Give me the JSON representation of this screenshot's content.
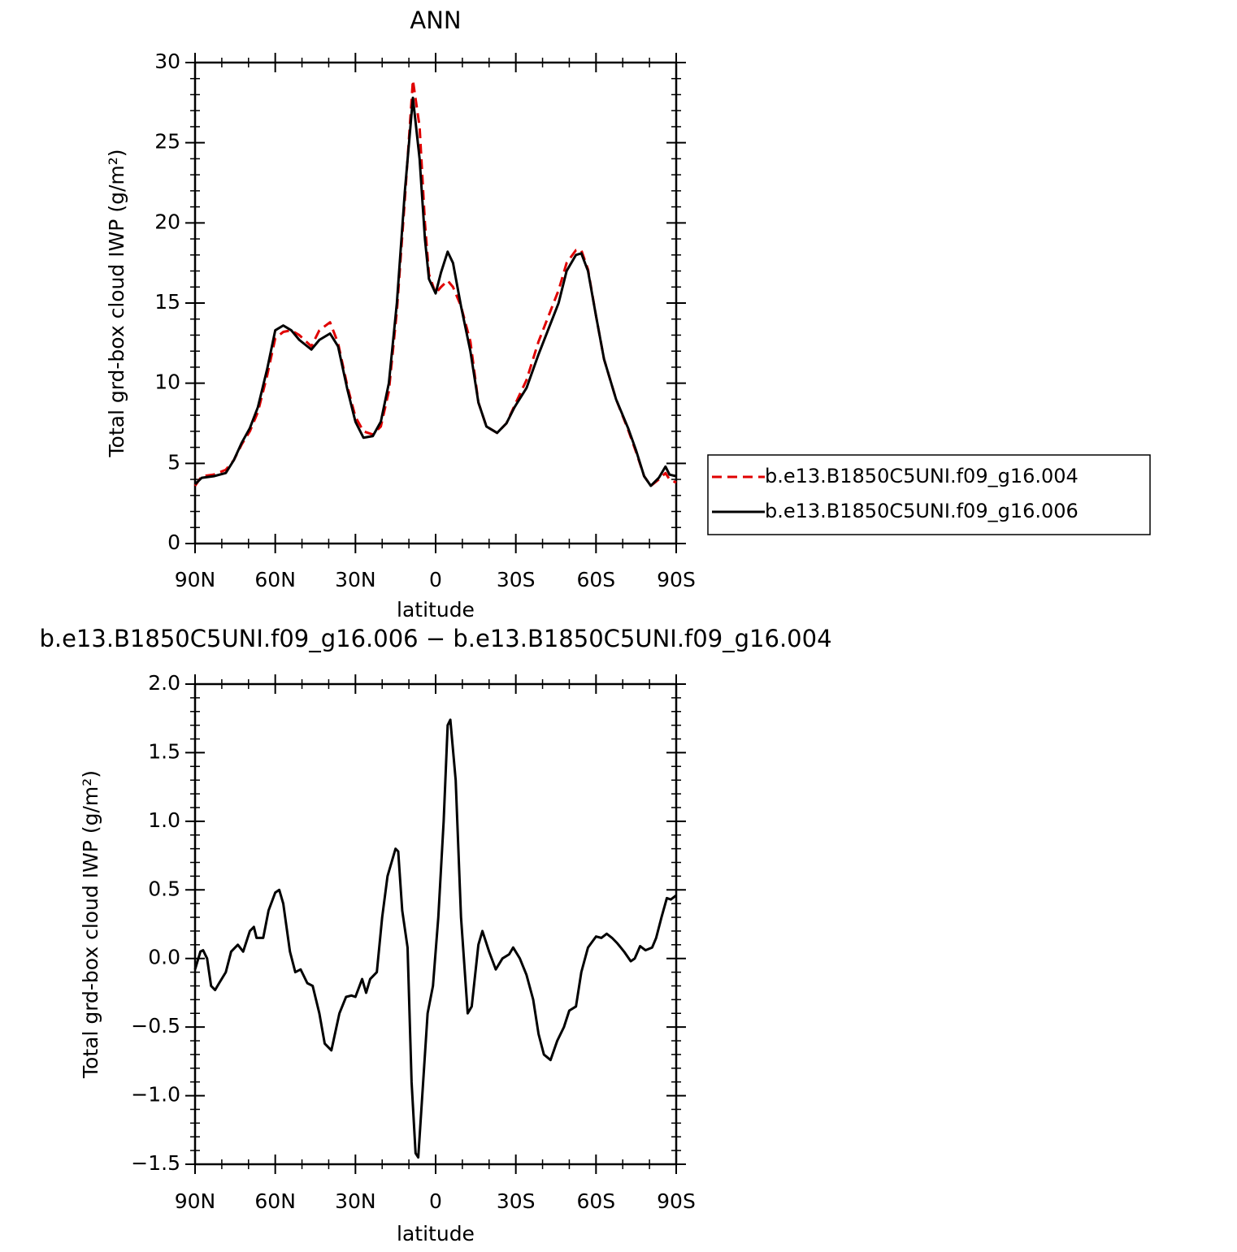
{
  "chart_data": [
    {
      "type": "line",
      "title": "ANN",
      "xlabel": "latitude",
      "ylabel": "Total grd-box cloud IWP (g/m²)",
      "xlim": [
        90,
        -90
      ],
      "ylim": [
        0,
        30
      ],
      "xticks": [
        {
          "value": 90,
          "label": "90N"
        },
        {
          "value": 60,
          "label": "60N"
        },
        {
          "value": 30,
          "label": "30N"
        },
        0,
        {
          "value": -30,
          "label": "30S"
        },
        {
          "value": -60,
          "label": "60S"
        },
        {
          "value": -90,
          "label": "90S"
        }
      ],
      "yticks": [
        0,
        5,
        10,
        15,
        20,
        25,
        30
      ],
      "xminorticks": [
        80,
        70,
        50,
        40,
        20,
        10,
        -10,
        -20,
        -40,
        -50,
        -70,
        -80
      ],
      "yminorticks": [
        1,
        2,
        3,
        4,
        6,
        7,
        8,
        9,
        11,
        12,
        13,
        14,
        16,
        17,
        18,
        19,
        21,
        22,
        23,
        24,
        26,
        27,
        28,
        29
      ],
      "legend": "right",
      "x": [
        90,
        87.5,
        83,
        78.5,
        75.5,
        72.5,
        69.5,
        66.5,
        63,
        60,
        57,
        54,
        51,
        46.5,
        43.5,
        39.5,
        36.5,
        33,
        30,
        27,
        23.5,
        20.5,
        17.5,
        14.5,
        11.5,
        8.5,
        6,
        4,
        2.5,
        0,
        -2,
        -4.5,
        -6.5,
        -9.5,
        -13,
        -16,
        -19,
        -23,
        -26.5,
        -29.5,
        -34,
        -38.5,
        -46,
        -49,
        -52.5,
        -54.5,
        -57,
        -60,
        -63,
        -67.5,
        -72,
        -75,
        -78,
        -80.5,
        -83.5,
        -86,
        -87.5,
        -90
      ],
      "series": [
        {
          "name": "b.e13.B1850C5UNI.f09_g16.004",
          "color": "#e00000",
          "dash": true,
          "values": [
            3.6,
            4.2,
            4.3,
            4.6,
            5.2,
            6.2,
            7.0,
            8.2,
            10.5,
            12.8,
            13.2,
            13.3,
            13.0,
            12.3,
            13.3,
            13.8,
            12.5,
            9.8,
            7.9,
            7.0,
            6.8,
            7.3,
            9.5,
            14.5,
            21.5,
            28.9,
            26,
            20,
            16.8,
            15.6,
            16.0,
            16.4,
            16.0,
            14.8,
            12.6,
            8.8,
            7.3,
            6.9,
            7.5,
            8.6,
            10.2,
            12.6,
            15.8,
            17.5,
            18.3,
            18.3,
            17.1,
            14.2,
            11.5,
            9.0,
            7.1,
            5.7,
            4.2,
            3.6,
            4.0,
            4.4,
            4.0,
            3.8
          ]
        },
        {
          "name": "b.e13.B1850C5UNI.f09_g16.006",
          "color": "#000000",
          "dash": false,
          "values": [
            3.7,
            4.1,
            4.2,
            4.4,
            5.2,
            6.3,
            7.2,
            8.5,
            10.9,
            13.3,
            13.6,
            13.3,
            12.7,
            12.1,
            12.7,
            13.1,
            12.3,
            9.6,
            7.6,
            6.6,
            6.7,
            7.6,
            10.0,
            15.0,
            22.0,
            27.8,
            24,
            19,
            16.5,
            15.6,
            16.9,
            18.2,
            17.5,
            14.8,
            12.0,
            8.8,
            7.3,
            6.9,
            7.5,
            8.5,
            9.7,
            11.8,
            15,
            17,
            18,
            18.1,
            17,
            14.2,
            11.5,
            9.0,
            7.2,
            5.8,
            4.2,
            3.6,
            4.1,
            4.8,
            4.3,
            4.2
          ]
        }
      ]
    },
    {
      "type": "line",
      "title": "b.e13.B1850C5UNI.f09_g16.006 − b.e13.B1850C5UNI.f09_g16.004",
      "xlabel": "latitude",
      "ylabel": "Total grd-box cloud IWP (g/m²)",
      "xlim": [
        90,
        -90
      ],
      "ylim": [
        -1.5,
        2.0
      ],
      "xticks": [
        {
          "value": 90,
          "label": "90N"
        },
        {
          "value": 60,
          "label": "60N"
        },
        {
          "value": 30,
          "label": "30N"
        },
        0,
        {
          "value": -30,
          "label": "30S"
        },
        {
          "value": -60,
          "label": "60S"
        },
        {
          "value": -90,
          "label": "90S"
        }
      ],
      "yticks": [
        {
          "value": -1.5,
          "label": "−1.5"
        },
        {
          "value": -1.0,
          "label": "−1.0"
        },
        {
          "value": -0.5,
          "label": "−0.5"
        },
        {
          "value": 0,
          "label": "0.0"
        },
        0.5,
        {
          "value": 1,
          "label": "1.0"
        },
        1.5,
        {
          "value": 2,
          "label": "2.0"
        }
      ],
      "xminorticks": [
        80,
        70,
        50,
        40,
        20,
        10,
        -10,
        -20,
        -40,
        -50,
        -70,
        -80
      ],
      "yminorticks": [
        -1.4,
        -1.3,
        -1.2,
        -1.1,
        -0.9,
        -0.8,
        -0.7,
        -0.6,
        -0.4,
        -0.3,
        -0.2,
        -0.1,
        0.1,
        0.2,
        0.3,
        0.4,
        0.6,
        0.7,
        0.8,
        0.9,
        1.1,
        1.2,
        1.3,
        1.4,
        1.6,
        1.7,
        1.8,
        1.9
      ],
      "color": "#000000",
      "x": [
        90,
        88,
        87,
        85.5,
        84,
        82.5,
        81,
        78.5,
        76.5,
        74,
        72,
        69.5,
        68,
        67,
        64.5,
        62.5,
        60,
        58.5,
        57,
        54.5,
        52.5,
        50.5,
        48,
        46,
        43.5,
        41.5,
        39,
        36,
        33.5,
        31.5,
        30,
        27.5,
        26,
        24.5,
        22,
        20,
        18,
        16.5,
        15,
        14,
        12.5,
        10.5,
        9,
        7.5,
        6.5,
        5,
        3,
        1,
        -1,
        -3,
        -4.5,
        -5.5,
        -7.5,
        -9.5,
        -12,
        -13.5,
        -16,
        -17.5,
        -20,
        -22.5,
        -25,
        -27.5,
        -29,
        -31.5,
        -34,
        -36.5,
        -38.5,
        -40.5,
        -43,
        -45.5,
        -48,
        -50,
        -52.5,
        -54.5,
        -57,
        -60,
        -62,
        -64,
        -66,
        -68,
        -70.5,
        -73,
        -74.5,
        -76.5,
        -78.5,
        -81,
        -82.5,
        -84.5,
        -86.5,
        -88,
        -90
      ],
      "values": [
        -0.08,
        0.05,
        0.06,
        0.0,
        -0.2,
        -0.23,
        -0.18,
        -0.1,
        0.05,
        0.1,
        0.05,
        0.2,
        0.23,
        0.15,
        0.15,
        0.35,
        0.48,
        0.5,
        0.4,
        0.05,
        -0.1,
        -0.08,
        -0.18,
        -0.2,
        -0.4,
        -0.62,
        -0.67,
        -0.4,
        -0.28,
        -0.27,
        -0.28,
        -0.15,
        -0.25,
        -0.15,
        -0.1,
        0.3,
        0.6,
        0.7,
        0.8,
        0.78,
        0.35,
        0.08,
        -0.9,
        -1.42,
        -1.45,
        -1.0,
        -0.4,
        -0.2,
        0.3,
        1.0,
        1.7,
        1.74,
        1.3,
        0.3,
        -0.4,
        -0.35,
        0.1,
        0.2,
        0.05,
        -0.08,
        0.0,
        0.03,
        0.08,
        0.0,
        -0.12,
        -0.3,
        -0.55,
        -0.7,
        -0.74,
        -0.6,
        -0.5,
        -0.38,
        -0.35,
        -0.1,
        0.08,
        0.16,
        0.15,
        0.18,
        0.15,
        0.11,
        0.05,
        -0.02,
        0.0,
        0.09,
        0.06,
        0.08,
        0.15,
        0.3,
        0.44,
        0.43,
        0.46
      ]
    }
  ]
}
